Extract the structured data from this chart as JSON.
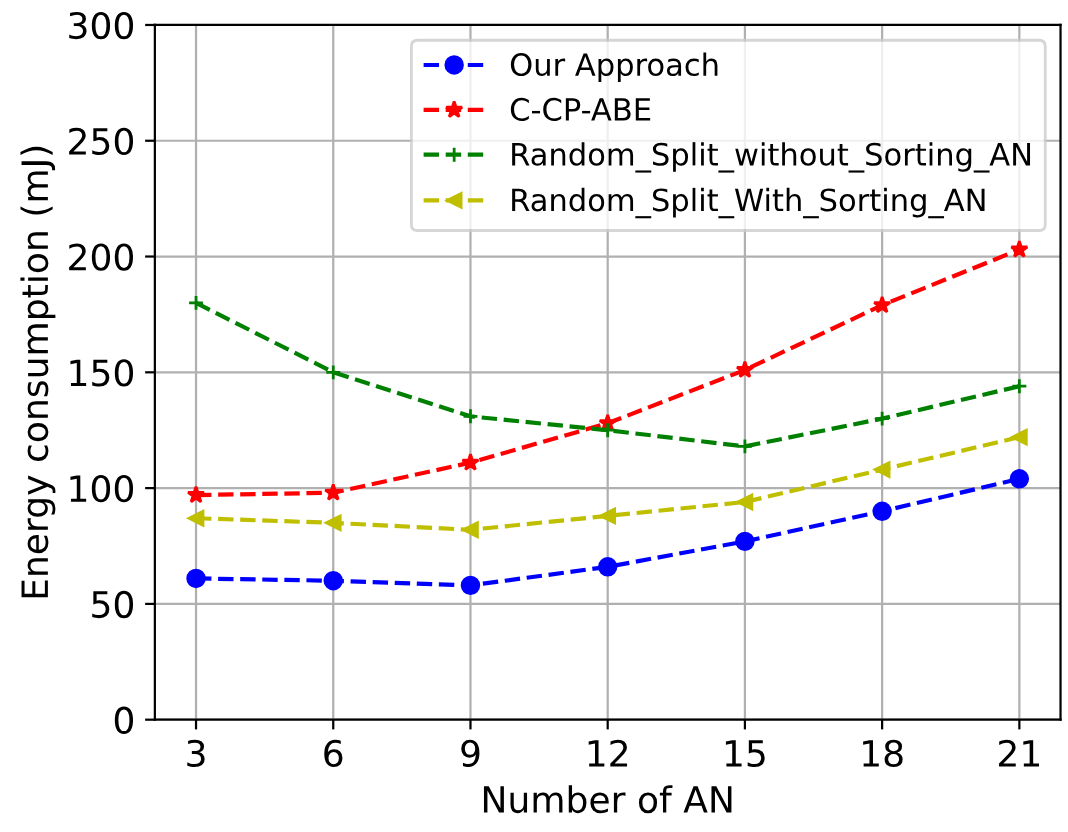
{
  "chart_data": {
    "type": "line",
    "xlabel": "Number of AN",
    "ylabel": "Energy consumption (mJ)",
    "x": [
      3,
      6,
      9,
      12,
      15,
      18,
      21
    ],
    "series": [
      {
        "name": "Our Approach",
        "color": "#0000ff",
        "marker": "circle",
        "values": [
          61,
          60,
          58,
          66,
          77,
          90,
          104
        ]
      },
      {
        "name": "C-CP-ABE",
        "color": "#ff0000",
        "marker": "star",
        "values": [
          97,
          98,
          111,
          128,
          151,
          179,
          203
        ]
      },
      {
        "name": "Random_Split_without_Sorting_AN",
        "color": "#008000",
        "marker": "cross",
        "values": [
          180,
          150,
          131,
          125,
          118,
          130,
          144
        ]
      },
      {
        "name": "Random_Split_With_Sorting_AN",
        "color": "#bfbf00",
        "marker": "triangle",
        "values": [
          87,
          85,
          82,
          88,
          94,
          108,
          122
        ]
      }
    ],
    "line_style": "dashed",
    "xlim": [
      2.1,
      21.9
    ],
    "xticks": [
      3,
      6,
      9,
      12,
      15,
      18,
      21
    ],
    "ylim": [
      0,
      300
    ],
    "yticks": [
      0,
      50,
      100,
      150,
      200,
      250,
      300
    ],
    "grid": true,
    "legend": "top right"
  }
}
